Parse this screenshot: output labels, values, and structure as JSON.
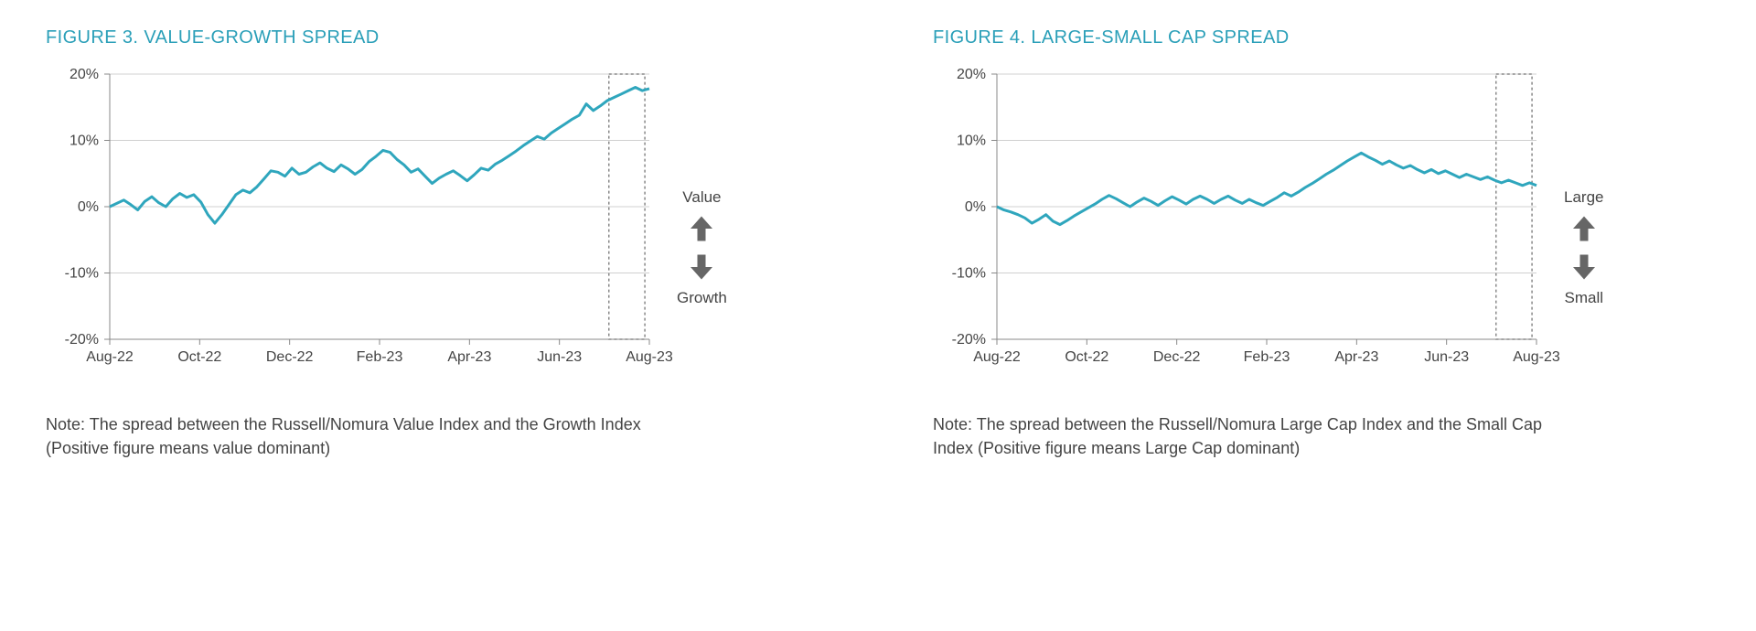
{
  "background_color": "#ffffff",
  "title_color": "#2a9fb8",
  "title_fontsize": 20,
  "text_color": "#444444",
  "note_fontsize": 18,
  "axis_color": "#888888",
  "grid_color": "#d0d0d0",
  "series_color": "#2fa6bd",
  "series_line_width": 3,
  "highlight_box_color": "#888888",
  "arrow_color": "#666666",
  "figure3": {
    "title": "FIGURE 3. VALUE-GROWTH SPREAD",
    "type": "line",
    "ylim": [
      -20,
      20
    ],
    "ytick_step": 10,
    "yticks": [
      "-20%",
      "-10%",
      "0%",
      "10%",
      "20%"
    ],
    "xlabels": [
      "Aug-22",
      "Oct-22",
      "Dec-22",
      "Feb-23",
      "Apr-23",
      "Jun-23",
      "Aug-23"
    ],
    "highlight_xrange": [
      5.55,
      5.95
    ],
    "side_label_top": "Value",
    "side_label_bottom": "Growth",
    "note": "Note: The spread between the Russell/Nomura Value Index and the Growth Index (Positive figure means value dominant)",
    "values": [
      0,
      0.5,
      1,
      0.3,
      -0.5,
      0.8,
      1.5,
      0.6,
      0,
      1.2,
      2,
      1.4,
      1.8,
      0.7,
      -1.2,
      -2.5,
      -1.2,
      0.3,
      1.8,
      2.5,
      2.1,
      3,
      4.2,
      5.4,
      5.2,
      4.6,
      5.8,
      4.9,
      5.2,
      6,
      6.6,
      5.8,
      5.3,
      6.3,
      5.7,
      4.9,
      5.6,
      6.8,
      7.6,
      8.5,
      8.2,
      7.1,
      6.3,
      5.2,
      5.7,
      4.6,
      3.5,
      4.3,
      4.9,
      5.4,
      4.7,
      3.9,
      4.8,
      5.8,
      5.5,
      6.4,
      7,
      7.7,
      8.4,
      9.2,
      9.9,
      10.6,
      10.2,
      11.1,
      11.8,
      12.5,
      13.2,
      13.8,
      15.5,
      14.5,
      15.2,
      16,
      16.5,
      17,
      17.5,
      18,
      17.5,
      17.8
    ]
  },
  "figure4": {
    "title": "FIGURE 4. LARGE-SMALL CAP SPREAD",
    "type": "line",
    "ylim": [
      -20,
      20
    ],
    "ytick_step": 10,
    "yticks": [
      "-20%",
      "-10%",
      "0%",
      "10%",
      "20%"
    ],
    "xlabels": [
      "Aug-22",
      "Oct-22",
      "Dec-22",
      "Feb-23",
      "Apr-23",
      "Jun-23",
      "Aug-23"
    ],
    "highlight_xrange": [
      5.55,
      5.95
    ],
    "side_label_top": "Large",
    "side_label_bottom": "Small",
    "note": "Note: The spread between the Russell/Nomura Large Cap Index and the Small Cap Index (Positive figure means Large Cap dominant)",
    "values": [
      0,
      -0.5,
      -0.8,
      -1.2,
      -1.7,
      -2.5,
      -1.9,
      -1.2,
      -2.2,
      -2.7,
      -2.1,
      -1.4,
      -0.8,
      -0.2,
      0.4,
      1.1,
      1.7,
      1.2,
      0.6,
      0,
      0.7,
      1.3,
      0.8,
      0.2,
      0.9,
      1.5,
      1,
      0.4,
      1.1,
      1.6,
      1.1,
      0.5,
      1.1,
      1.6,
      1,
      0.5,
      1.1,
      0.6,
      0.2,
      0.8,
      1.4,
      2.1,
      1.6,
      2.2,
      2.9,
      3.5,
      4.2,
      4.9,
      5.5,
      6.2,
      6.9,
      7.5,
      8.1,
      7.5,
      7,
      6.4,
      6.9,
      6.3,
      5.8,
      6.2,
      5.6,
      5.1,
      5.6,
      5,
      5.4,
      4.9,
      4.4,
      4.9,
      4.5,
      4.1,
      4.5,
      4,
      3.6,
      4,
      3.6,
      3.2,
      3.6,
      3.2
    ]
  }
}
